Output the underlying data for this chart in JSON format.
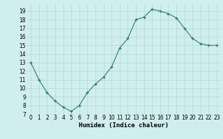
{
  "x": [
    0,
    1,
    2,
    3,
    4,
    5,
    6,
    7,
    8,
    9,
    10,
    11,
    12,
    13,
    14,
    15,
    16,
    17,
    18,
    19,
    20,
    21,
    22,
    23
  ],
  "y": [
    13,
    11,
    9.5,
    8.5,
    7.8,
    7.3,
    8.0,
    9.5,
    10.5,
    11.3,
    12.5,
    14.7,
    15.8,
    18.0,
    18.3,
    19.2,
    19.0,
    18.7,
    18.2,
    17.0,
    15.8,
    15.2,
    15.0,
    15.0
  ],
  "line_color": "#2d7a6e",
  "marker": "+",
  "marker_size": 3,
  "bg_color": "#d0eeee",
  "grid_color": "#b0d8d8",
  "xlabel": "Humidex (Indice chaleur)",
  "xlim": [
    -0.5,
    23.5
  ],
  "ylim": [
    7,
    19.8
  ],
  "yticks": [
    7,
    8,
    9,
    10,
    11,
    12,
    13,
    14,
    15,
    16,
    17,
    18,
    19
  ],
  "xticks": [
    0,
    1,
    2,
    3,
    4,
    5,
    6,
    7,
    8,
    9,
    10,
    11,
    12,
    13,
    14,
    15,
    16,
    17,
    18,
    19,
    20,
    21,
    22,
    23
  ],
  "xlabel_fontsize": 6.5,
  "tick_fontsize": 5.5
}
